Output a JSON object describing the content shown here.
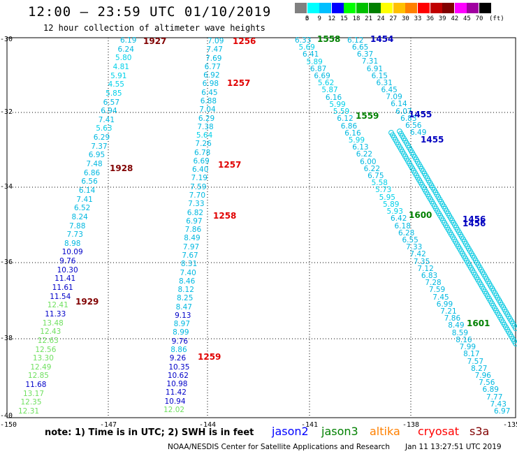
{
  "title": "12:00 – 23:59 UTC 01/10/2019",
  "subtitle": "12 hour collection of altimeter wave heights",
  "colorbar": {
    "labels": [
      "3",
      "6",
      "9",
      "12",
      "15",
      "18",
      "21",
      "24",
      "27",
      "30",
      "33",
      "36",
      "39",
      "42",
      "45",
      "70"
    ],
    "unit": "(ft)",
    "colors": [
      "#808080",
      "#00ffff",
      "#00bfff",
      "#0000ff",
      "#00ff00",
      "#00c000",
      "#008000",
      "#ffff00",
      "#ffc000",
      "#ff8000",
      "#ff0000",
      "#c00000",
      "#800000",
      "#ff00ff",
      "#a000a0",
      "#000000"
    ]
  },
  "lat_labels": [
    "-30",
    "-32",
    "-34",
    "-36",
    "-38",
    "-40"
  ],
  "lon_labels": [
    "-150",
    "-147",
    "-144",
    "-141",
    "-138",
    "-135"
  ],
  "time_labels": [
    {
      "text": "1927",
      "color": "#800000"
    },
    {
      "text": "1928",
      "color": "#800000"
    },
    {
      "text": "1929",
      "color": "#800000"
    },
    {
      "text": "1256",
      "color": "#e00000"
    },
    {
      "text": "1257",
      "color": "#e00000"
    },
    {
      "text": "1257",
      "color": "#e00000"
    },
    {
      "text": "1258",
      "color": "#e00000"
    },
    {
      "text": "1259",
      "color": "#e00000"
    },
    {
      "text": "1558",
      "color": "#008000"
    },
    {
      "text": "1559",
      "color": "#008000"
    },
    {
      "text": "1600",
      "color": "#008000"
    },
    {
      "text": "1601",
      "color": "#008000"
    },
    {
      "text": "1454",
      "color": "#0000c0"
    },
    {
      "text": "1455",
      "color": "#0000c0"
    },
    {
      "text": "1455",
      "color": "#0000c0"
    },
    {
      "text": "1456",
      "color": "#0000c0"
    },
    {
      "text": "1456",
      "color": "#0000c0"
    }
  ],
  "tracks": {
    "t1927": [
      "6.19",
      "6.24",
      "5.80",
      "4.81",
      "5.91",
      "4.55",
      "5.85",
      "6.57",
      "6.94",
      "7.41",
      "5.63",
      "6.29",
      "7.37",
      "6.95",
      "7.48",
      "6.86",
      "6.56",
      "6.14",
      "7.41",
      "6.52",
      "8.24",
      "7.88",
      "7.73",
      "8.98",
      "10.09",
      "9.76",
      "10.30",
      "11.41",
      "11.61",
      "11.54",
      "12.41",
      "11.33",
      "13.48",
      "12.43",
      "12.63",
      "12.56",
      "13.30",
      "12.49",
      "12.85",
      "11.68",
      "13.17",
      "12.35",
      "12.31"
    ],
    "t1256": [
      "7.09",
      "7.47",
      "7.69",
      "6.77",
      "6.92",
      "6.98",
      "6.45",
      "6.88",
      "7.04",
      "6.29",
      "7.38",
      "5.64",
      "7.26",
      "6.78",
      "6.69",
      "6.40",
      "7.19",
      "7.59",
      "7.70",
      "7.33",
      "6.82",
      "6.97",
      "7.86",
      "8.49",
      "7.97",
      "7.67",
      "8.31",
      "7.40",
      "8.46",
      "8.12",
      "8.25",
      "8.47",
      "9.13",
      "8.97",
      "8.99",
      "9.76",
      "8.86",
      "9.26",
      "10.35",
      "10.62",
      "10.98",
      "11.42",
      "10.94",
      "12.02"
    ],
    "t1558": [
      "6.33",
      "5.69",
      "6.41",
      "5.89",
      "6.87",
      "6.69",
      "5.62",
      "5.87",
      "6.16",
      "5.99",
      "5.59",
      "6.12",
      "6.86",
      "6.16",
      "5.99",
      "6.13",
      "6.22",
      "6.00",
      "6.22",
      "6.75",
      "5.58",
      "5.73",
      "5.95",
      "5.89",
      "5.93",
      "6.42",
      "6.18",
      "6.28",
      "6.55",
      "7.33",
      "7.42",
      "7.35",
      "7.12",
      "6.83",
      "7.28",
      "7.59",
      "7.45",
      "6.99",
      "7.21",
      "7.86",
      "8.49",
      "8.59",
      "8.16",
      "7.99",
      "8.17",
      "7.57",
      "8.27",
      "7.96",
      "7.56",
      "6.89",
      "7.77",
      "7.43",
      "6.97"
    ],
    "t1454": [
      "6.12",
      "6.65",
      "6.37",
      "7.31",
      "6.91",
      "6.15",
      "6.31",
      "6.45",
      "7.09",
      "6.14",
      "6.07",
      "6.83",
      "6.56",
      "6.49"
    ]
  },
  "note": "note:  1) Time is in UTC;  2) SWH is in feet",
  "satellites": [
    {
      "name": "jason2",
      "color": "#0000ff"
    },
    {
      "name": "jason3",
      "color": "#008000"
    },
    {
      "name": "altika",
      "color": "#ff8000"
    },
    {
      "name": "cryosat",
      "color": "#ff0000"
    },
    {
      "name": "s3a",
      "color": "#800000"
    }
  ],
  "credit": "NOAA/NESDIS Center for Satellite Applications and Research",
  "timestamp": "Jan 11 13:27:51 UTC 2019"
}
